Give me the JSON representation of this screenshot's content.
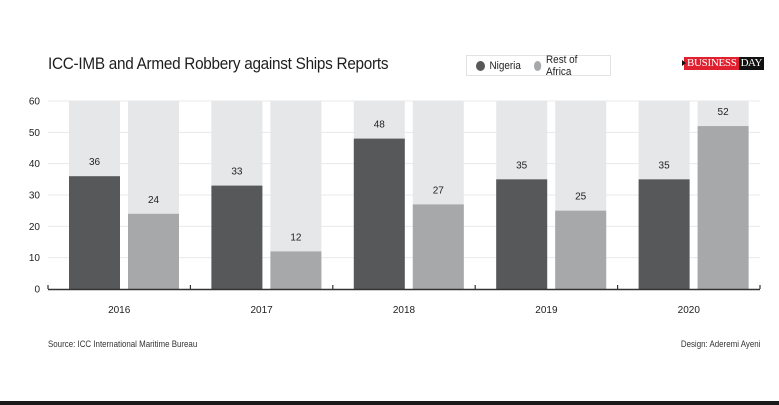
{
  "header": {
    "title": "ICC-IMB and Armed Robbery against Ships Reports",
    "brand_part1": "BUSINESS",
    "brand_part2": "DAY"
  },
  "legend": [
    {
      "label": "Nigeria",
      "color": "#57585a"
    },
    {
      "label": "Rest of Africa",
      "color": "#a7a8aa"
    }
  ],
  "colors": {
    "nigeria": "#57585a",
    "rest_of_africa": "#a7a8aa",
    "bar_background": "#e6e7e8",
    "gridline": "#e8e8e8",
    "axis": "#333333",
    "brand_red": "#e0202e",
    "brand_black": "#111111"
  },
  "chart_data": {
    "type": "bar",
    "title": "ICC-IMB and Armed Robbery against Ships Reports",
    "xlabel": "",
    "ylabel": "",
    "categories": [
      "2016",
      "2017",
      "2018",
      "2019",
      "2020"
    ],
    "series": [
      {
        "name": "Nigeria",
        "values": [
          36,
          33,
          48,
          35,
          35
        ]
      },
      {
        "name": "Rest of Africa",
        "values": [
          24,
          12,
          27,
          25,
          52
        ]
      }
    ],
    "ylim": [
      0,
      60
    ],
    "yticks": [
      0,
      10,
      20,
      30,
      40,
      50,
      60
    ],
    "grid": true,
    "legend_position": "top-right",
    "data_labels": true
  },
  "footer": {
    "source": "Source: ICC International Maritime Bureau",
    "design": "Design: Aderemi Ayeni"
  }
}
